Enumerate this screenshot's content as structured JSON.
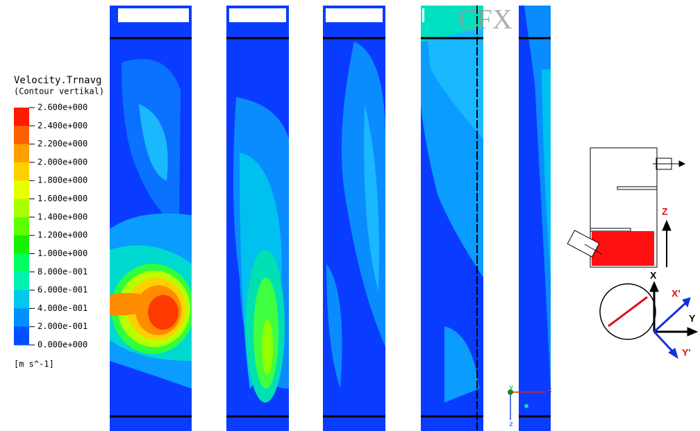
{
  "legend": {
    "title": "Velocity.Trnavg",
    "subtitle": "(Contour vertikal)",
    "labels": [
      "2.600e+000",
      "2.400e+000",
      "2.200e+000",
      "2.000e+000",
      "1.800e+000",
      "1.600e+000",
      "1.400e+000",
      "1.200e+000",
      "1.000e+000",
      "8.000e-001",
      "6.000e-001",
      "4.000e-001",
      "2.000e-001",
      "0.000e+000"
    ],
    "unit": "[m s^-1]"
  },
  "logo": "CFX",
  "diagram": {
    "axes": [
      "Z",
      "X",
      "Y",
      "X'",
      "Y'"
    ]
  },
  "triad": [
    "x",
    "y",
    "z"
  ]
}
